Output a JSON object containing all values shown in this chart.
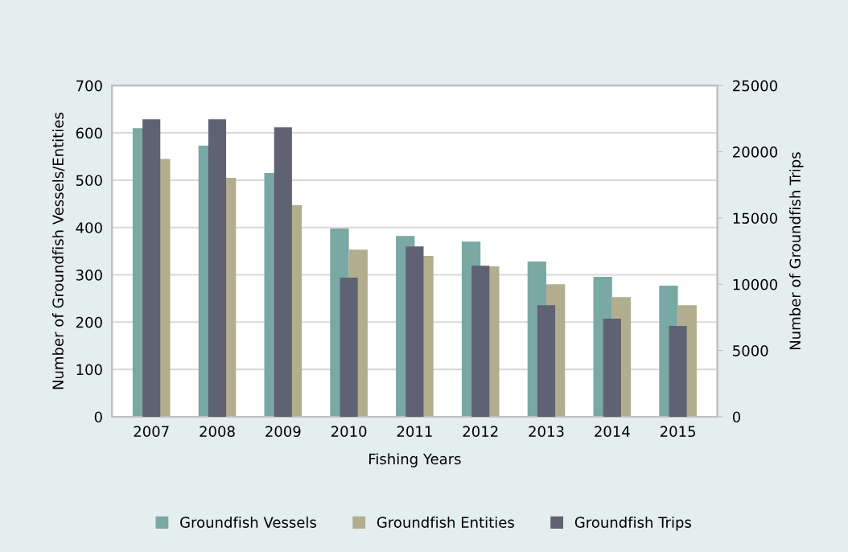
{
  "chart_data": {
    "type": "bar",
    "xlabel": "Fishing Years",
    "ylabel": "Number of Groundfish Vessels/Entities",
    "y2label": "Number of Groundfish Trips",
    "categories": [
      "2007",
      "2008",
      "2009",
      "2010",
      "2011",
      "2012",
      "2013",
      "2014",
      "2015"
    ],
    "series": [
      {
        "name": "Groundfish Vessels",
        "color": "#7aa8a4",
        "values": [
          610,
          573,
          515,
          398,
          382,
          370,
          328,
          296,
          277
        ]
      },
      {
        "name": "Groundfish Entities",
        "color": "#b2ad8e",
        "values": [
          545,
          505,
          447,
          353,
          340,
          318,
          280,
          253,
          236
        ]
      },
      {
        "name": "Groundfish Trips",
        "color": "#5f6272",
        "axis": "y2",
        "values": [
          22450,
          22450,
          21850,
          10500,
          12860,
          11400,
          8430,
          7400,
          6860
        ]
      }
    ],
    "ylim": [
      0,
      700
    ],
    "yticks": [
      0,
      100,
      200,
      300,
      400,
      500,
      600,
      700
    ],
    "y2lim": [
      0,
      25000
    ],
    "y2ticks": [
      0,
      5000,
      10000,
      15000,
      20000,
      25000
    ],
    "grid": "y",
    "legend": "bottom"
  }
}
